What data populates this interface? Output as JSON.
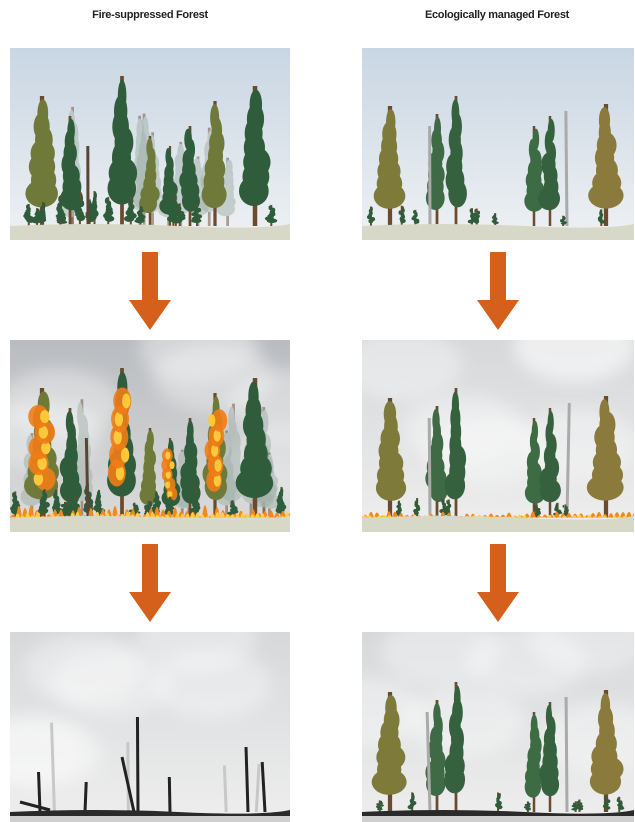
{
  "columns": [
    {
      "title": "Fire-suppressed Forest"
    },
    {
      "title": "Ecologically managed Forest"
    }
  ]
}
